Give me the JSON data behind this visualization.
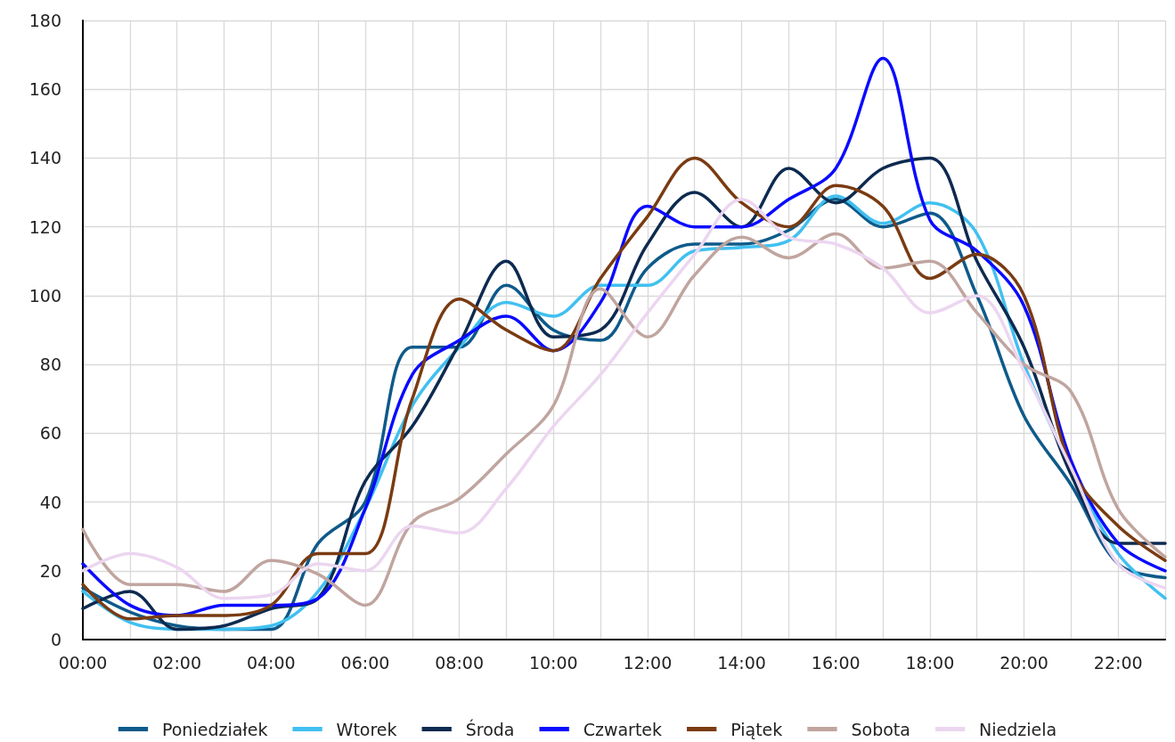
{
  "chart_data": {
    "type": "line",
    "x": [
      0,
      1,
      2,
      3,
      4,
      5,
      6,
      7,
      8,
      9,
      10,
      11,
      12,
      13,
      14,
      15,
      16,
      17,
      18,
      19,
      20,
      21,
      22,
      23
    ],
    "xlim": [
      0,
      23
    ],
    "xticks": [
      {
        "value": 0,
        "label": "00:00"
      },
      {
        "value": 1,
        "label": null
      },
      {
        "value": 2,
        "label": "02:00"
      },
      {
        "value": 3,
        "label": null
      },
      {
        "value": 4,
        "label": "04:00"
      },
      {
        "value": 5,
        "label": null
      },
      {
        "value": 6,
        "label": "06:00"
      },
      {
        "value": 7,
        "label": null
      },
      {
        "value": 8,
        "label": "08:00"
      },
      {
        "value": 9,
        "label": null
      },
      {
        "value": 10,
        "label": "10:00"
      },
      {
        "value": 11,
        "label": null
      },
      {
        "value": 12,
        "label": "12:00"
      },
      {
        "value": 13,
        "label": null
      },
      {
        "value": 14,
        "label": "14:00"
      },
      {
        "value": 15,
        "label": null
      },
      {
        "value": 16,
        "label": "16:00"
      },
      {
        "value": 17,
        "label": null
      },
      {
        "value": 18,
        "label": "18:00"
      },
      {
        "value": 19,
        "label": null
      },
      {
        "value": 20,
        "label": "20:00"
      },
      {
        "value": 21,
        "label": null
      },
      {
        "value": 22,
        "label": "22:00"
      },
      {
        "value": 23,
        "label": null
      }
    ],
    "ylim": [
      0,
      180
    ],
    "yticks": [
      0,
      20,
      40,
      60,
      80,
      100,
      120,
      140,
      160,
      180
    ],
    "grid": true,
    "legend": "bottom",
    "marker": "none",
    "line_style": "solid",
    "series": [
      {
        "name": "Poniedziałek",
        "color": "#0e5a8a",
        "values": [
          15,
          8,
          4,
          3,
          3,
          28,
          40,
          85,
          85,
          103,
          90,
          87,
          108,
          115,
          115,
          119,
          128,
          120,
          124,
          100,
          65,
          45,
          22,
          18
        ]
      },
      {
        "name": "Wtorek",
        "color": "#41c0f0",
        "values": [
          14,
          5,
          3,
          3,
          4,
          14,
          38,
          68,
          85,
          98,
          94,
          103,
          103,
          113,
          114,
          116,
          129,
          121,
          127,
          118,
          80,
          50,
          25,
          12
        ]
      },
      {
        "name": "Środa",
        "color": "#0d2a50",
        "values": [
          9,
          14,
          3,
          4,
          9,
          12,
          46,
          62,
          86,
          110,
          88,
          90,
          115,
          130,
          120,
          137,
          127,
          137,
          140,
          110,
          85,
          48,
          28,
          28
        ]
      },
      {
        "name": "Czwartek",
        "color": "#0a0aff",
        "values": [
          22,
          10,
          7,
          10,
          10,
          12,
          38,
          77,
          87,
          94,
          84,
          98,
          126,
          120,
          120,
          128,
          137,
          169,
          122,
          113,
          97,
          52,
          28,
          20
        ]
      },
      {
        "name": "Piątek",
        "color": "#7a3b12",
        "values": [
          16,
          6,
          7,
          7,
          10,
          25,
          25,
          70,
          99,
          90,
          84,
          105,
          123,
          140,
          127,
          120,
          132,
          126,
          105,
          112,
          100,
          50,
          33,
          23
        ]
      },
      {
        "name": "Sobota",
        "color": "#c0a59f",
        "values": [
          32,
          16,
          16,
          14,
          23,
          19,
          10,
          34,
          41,
          54,
          68,
          102,
          88,
          106,
          117,
          111,
          118,
          108,
          110,
          95,
          80,
          72,
          38,
          24
        ]
      },
      {
        "name": "Niedziela",
        "color": "#ecd6f0",
        "values": [
          20,
          25,
          21,
          12,
          13,
          22,
          20,
          33,
          31,
          44,
          62,
          77,
          95,
          112,
          128,
          117,
          115,
          108,
          95,
          100,
          78,
          50,
          22,
          15
        ]
      }
    ]
  }
}
